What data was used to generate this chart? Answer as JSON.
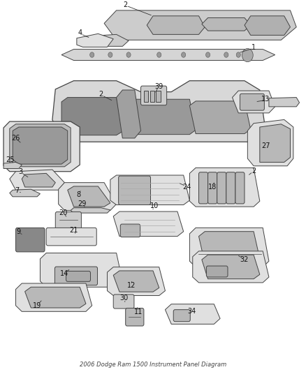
{
  "title": "2006 Dodge Ram 1500 Instrument Panel Diagram",
  "background_color": "#ffffff",
  "figsize": [
    4.38,
    5.33
  ],
  "dpi": 100,
  "label_fontsize": 7,
  "label_color": "#111111",
  "line_color": "#333333",
  "line_width": 0.6,
  "part_edge_color": "#444444",
  "part_face_light": "#e0e0e0",
  "part_face_mid": "#cccccc",
  "part_face_dark": "#b8b8b8",
  "part_lw": 0.7
}
